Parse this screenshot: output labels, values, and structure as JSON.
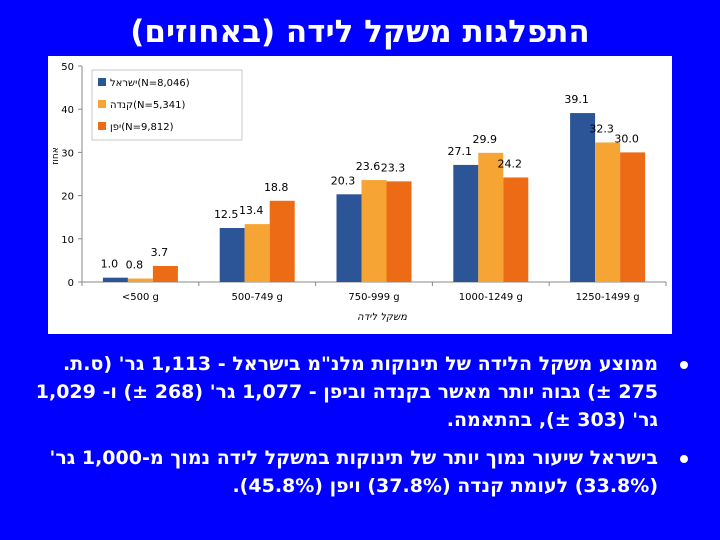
{
  "slide": {
    "title": "התפלגות משקל לידה (באחוזים)",
    "bullets": [
      "ממוצע משקל הלידה של תינוקות מלנ\"מ בישראל - 1,113 גר' (ס.ת. 275 ±) גבוה יותר מאשר בקנדה וביפן - 1,077 גר' (268 ±) ו- 1,029 גר' (303 ±), בהתאמה.",
      "בישראל שיעור נמוך יותר של תינוקות במשקל לידה נמוך מ-1,000 גר' (33.8%) לעומת קנדה (37.8%) ויפן (45.8%)."
    ]
  },
  "chart_data": {
    "type": "bar",
    "title": "",
    "xlabel": "משקל לידה",
    "ylabel": "אחוז",
    "ylim": [
      0,
      50
    ],
    "yticks": [
      0,
      10,
      20,
      30,
      40,
      50
    ],
    "grid": false,
    "legend_position": "top-left",
    "categories": [
      "<500 g",
      "500-749 g",
      "750-999 g",
      "1000-1249 g",
      "1250-1499 g"
    ],
    "series": [
      {
        "name": "ישראל",
        "legend_label": "ישראל(N=8,046)",
        "color": "#2b5597",
        "values": [
          1.0,
          12.5,
          20.3,
          27.1,
          39.1
        ]
      },
      {
        "name": "קנדה",
        "legend_label": "קנדה(N=5,341)",
        "color": "#f6a535",
        "values": [
          0.8,
          13.4,
          23.6,
          29.9,
          32.3
        ]
      },
      {
        "name": "יפן",
        "legend_label": "יפן(N=9,812)",
        "color": "#ec6b14",
        "values": [
          3.7,
          18.8,
          23.3,
          24.2,
          30.0
        ]
      }
    ]
  }
}
